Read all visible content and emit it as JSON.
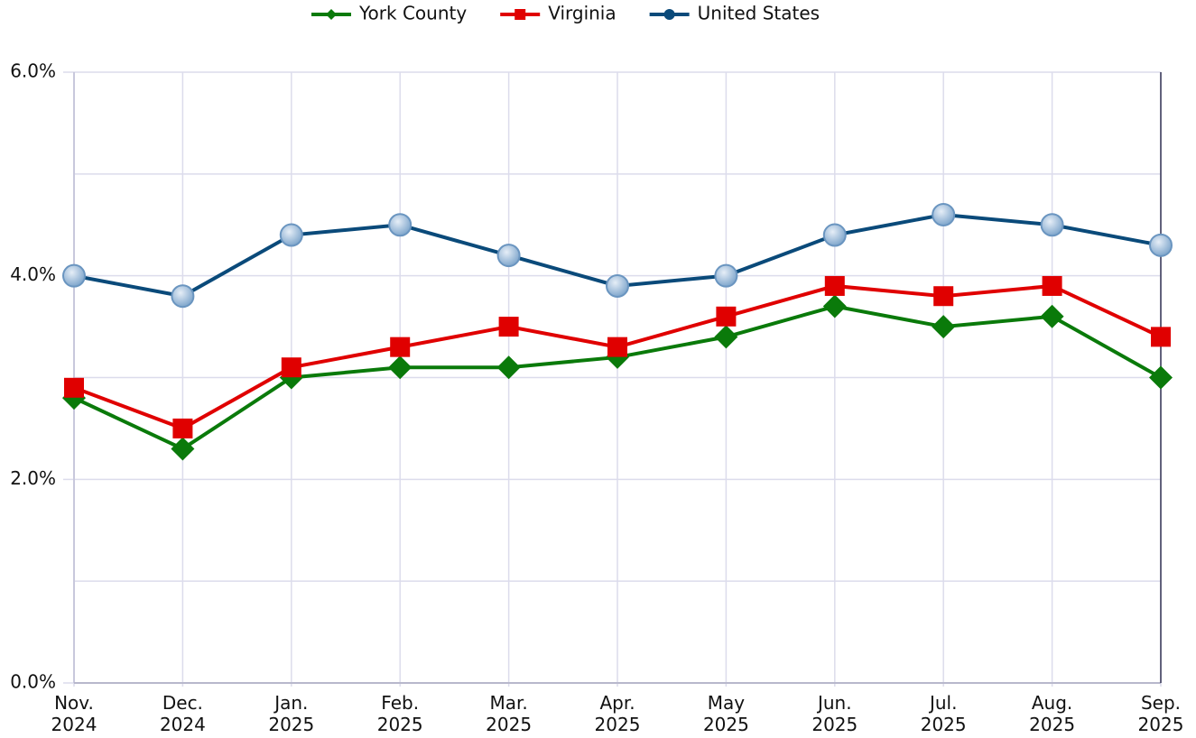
{
  "chart_data": {
    "type": "line",
    "categories": [
      "Nov. 2024",
      "Dec. 2024",
      "Jan. 2025",
      "Feb. 2025",
      "Mar. 2025",
      "Apr. 2025",
      "May 2025",
      "Jun. 2025",
      "Jul. 2025",
      "Aug. 2025",
      "Sep. 2025"
    ],
    "series": [
      {
        "name": "York County",
        "color": "#0a7a0a",
        "marker": "diamond",
        "values": [
          2.8,
          2.3,
          3.0,
          3.1,
          3.1,
          3.2,
          3.4,
          3.7,
          3.5,
          3.6,
          3.0
        ]
      },
      {
        "name": "Virginia",
        "color": "#e00000",
        "marker": "square",
        "values": [
          2.9,
          2.5,
          3.1,
          3.3,
          3.5,
          3.3,
          3.6,
          3.9,
          3.8,
          3.9,
          3.4
        ]
      },
      {
        "name": "United States",
        "color": "#0a4a7a",
        "marker": "circle",
        "values": [
          4.0,
          3.8,
          4.4,
          4.5,
          4.2,
          3.9,
          4.0,
          4.4,
          4.6,
          4.5,
          4.3
        ]
      }
    ],
    "ylim": [
      0,
      6
    ],
    "yticks": [
      {
        "value": 0,
        "label": "0.0%"
      },
      {
        "value": 2,
        "label": "2.0%"
      },
      {
        "value": 4,
        "label": "4.0%"
      },
      {
        "value": 6,
        "label": "6.0%"
      }
    ],
    "yminorticks": [
      1,
      3,
      5
    ],
    "grid": true,
    "legend": "top"
  }
}
